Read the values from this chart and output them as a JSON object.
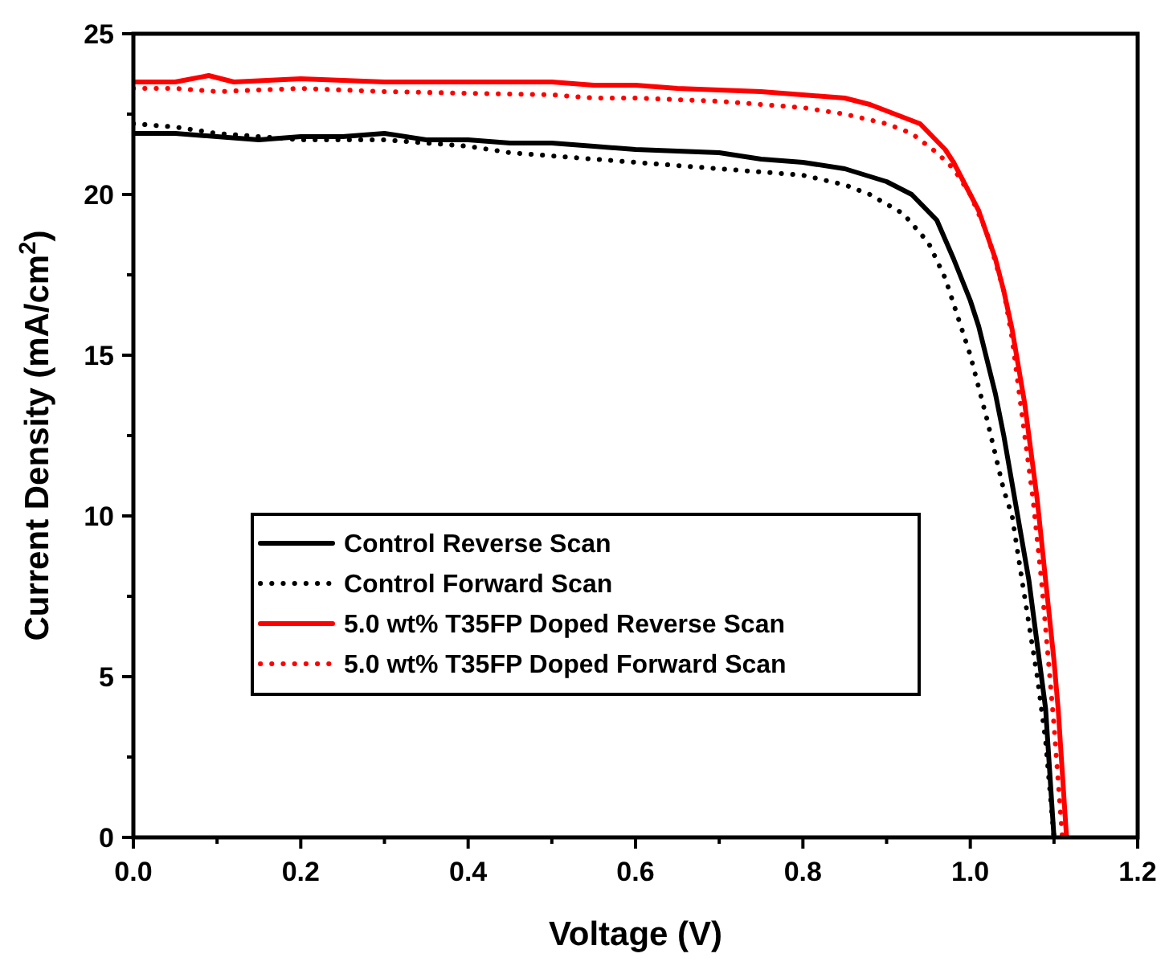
{
  "chart_data": {
    "type": "line",
    "xlabel": "Voltage (V)",
    "ylabel": "Current Density (mA/cm$^{2}$)",
    "xlim": [
      0,
      1.2
    ],
    "ylim": [
      0,
      25
    ],
    "xticks": [
      {
        "value": 0,
        "label": "0.0"
      },
      {
        "value": 0.1,
        "label": null
      },
      {
        "value": 0.2,
        "label": "0.2"
      },
      {
        "value": 0.3,
        "label": null
      },
      {
        "value": 0.4,
        "label": "0.4"
      },
      {
        "value": 0.5,
        "label": null
      },
      {
        "value": 0.6,
        "label": "0.6"
      },
      {
        "value": 0.7,
        "label": null
      },
      {
        "value": 0.8,
        "label": "0.8"
      },
      {
        "value": 0.9,
        "label": null
      },
      {
        "value": 1.0,
        "label": "1.0"
      },
      {
        "value": 1.1,
        "label": null
      },
      {
        "value": 1.2,
        "label": "1.2"
      }
    ],
    "yticks": [
      0,
      {
        "value": 2.5,
        "label": null
      },
      5,
      {
        "value": 7.5,
        "label": null
      },
      10,
      {
        "value": 12.5,
        "label": null
      },
      15,
      {
        "value": 17.5,
        "label": null
      },
      20,
      {
        "value": 22.5,
        "label": null
      },
      25
    ],
    "grid": false,
    "legend": "left",
    "marker": "none",
    "series": [
      {
        "name": "Control Reverse Scan",
        "color": "#000000",
        "line_style": "solid",
        "x": [
          0,
          0.05,
          0.1,
          0.15,
          0.2,
          0.25,
          0.3,
          0.35,
          0.4,
          0.45,
          0.5,
          0.55,
          0.6,
          0.65,
          0.7,
          0.75,
          0.8,
          0.85,
          0.9,
          0.93,
          0.96,
          0.98,
          1.0,
          1.01,
          1.03,
          1.04,
          1.06,
          1.07,
          1.08,
          1.09,
          1.1
        ],
        "values": [
          21.9,
          21.9,
          21.8,
          21.7,
          21.8,
          21.8,
          21.9,
          21.7,
          21.7,
          21.6,
          21.6,
          21.5,
          21.4,
          21.35,
          21.3,
          21.1,
          21.0,
          20.8,
          20.4,
          20.0,
          19.2,
          18.0,
          16.7,
          15.9,
          13.8,
          12.5,
          9.5,
          8.0,
          6.0,
          4.0,
          0
        ]
      },
      {
        "name": "Control Forward Scan",
        "color": "#000000",
        "line_style": "dotted",
        "x": [
          0,
          0.05,
          0.1,
          0.15,
          0.2,
          0.25,
          0.3,
          0.35,
          0.4,
          0.45,
          0.5,
          0.55,
          0.6,
          0.65,
          0.7,
          0.75,
          0.8,
          0.85,
          0.88,
          0.92,
          0.95,
          0.97,
          1.0,
          1.02,
          1.04,
          1.05,
          1.06,
          1.08,
          1.09,
          1.1
        ],
        "values": [
          22.2,
          22.1,
          21.9,
          21.8,
          21.7,
          21.7,
          21.7,
          21.6,
          21.5,
          21.3,
          21.2,
          21.1,
          21.0,
          20.9,
          20.8,
          20.7,
          20.6,
          20.3,
          20.0,
          19.4,
          18.5,
          17.4,
          15.0,
          13.0,
          10.8,
          10.0,
          8.3,
          5.0,
          3.0,
          0
        ]
      },
      {
        "name": "5.0 wt% T35FP Doped Reverse Scan",
        "color": "#ff0000",
        "line_style": "solid",
        "x": [
          0,
          0.05,
          0.09,
          0.12,
          0.2,
          0.3,
          0.4,
          0.5,
          0.55,
          0.6,
          0.65,
          0.7,
          0.75,
          0.8,
          0.85,
          0.88,
          0.91,
          0.94,
          0.97,
          0.98,
          1.0,
          1.01,
          1.03,
          1.04,
          1.05,
          1.065,
          1.08,
          1.09,
          1.1,
          1.105,
          1.115
        ],
        "values": [
          23.5,
          23.5,
          23.7,
          23.5,
          23.6,
          23.5,
          23.5,
          23.5,
          23.4,
          23.4,
          23.3,
          23.25,
          23.2,
          23.1,
          23.0,
          22.8,
          22.5,
          22.2,
          21.4,
          21.0,
          20.0,
          19.5,
          18.0,
          17.0,
          15.8,
          13.5,
          10.5,
          8.0,
          5.5,
          4.0,
          0
        ]
      },
      {
        "name": "5.0 wt% T35FP Doped Forward Scan",
        "color": "#ff0000",
        "line_style": "dotted",
        "x": [
          0,
          0.05,
          0.1,
          0.2,
          0.3,
          0.4,
          0.5,
          0.55,
          0.6,
          0.7,
          0.8,
          0.85,
          0.9,
          0.93,
          0.96,
          0.98,
          1.0,
          1.02,
          1.04,
          1.05,
          1.06,
          1.075,
          1.085,
          1.1,
          1.11
        ],
        "values": [
          23.3,
          23.3,
          23.2,
          23.3,
          23.2,
          23.15,
          23.1,
          23.0,
          23.0,
          22.9,
          22.7,
          22.5,
          22.2,
          21.9,
          21.3,
          20.8,
          20.0,
          18.8,
          17.0,
          15.5,
          13.5,
          10.5,
          8.0,
          3.5,
          0
        ]
      }
    ]
  }
}
